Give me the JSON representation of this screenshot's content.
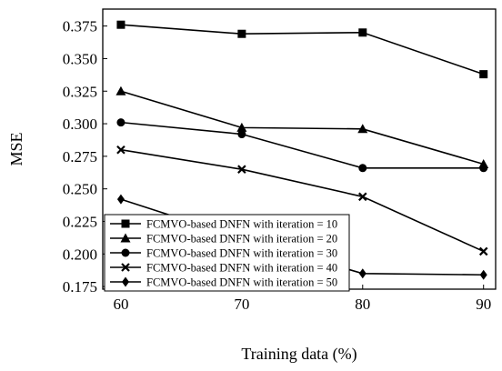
{
  "chart_data": {
    "type": "line",
    "xlabel": "Training data (%)",
    "ylabel": "MSE",
    "x": [
      60,
      70,
      80,
      90
    ],
    "x_ticks": [
      "60",
      "70",
      "80",
      "90"
    ],
    "xlim": [
      58.5,
      91
    ],
    "ylim": [
      0.173,
      0.388
    ],
    "y_ticks": [
      "0.175",
      "0.200",
      "0.225",
      "0.250",
      "0.275",
      "0.300",
      "0.325",
      "0.350",
      "0.375"
    ],
    "grid": false,
    "legend_position": "bottom-left",
    "series": [
      {
        "name": "FCMVO-based DNFN with iteration = 10",
        "marker": "square",
        "values": [
          0.376,
          0.369,
          0.37,
          0.338
        ]
      },
      {
        "name": "FCMVO-based DNFN with iteration = 20",
        "marker": "triangle",
        "values": [
          0.325,
          0.297,
          0.296,
          0.269
        ]
      },
      {
        "name": "FCMVO-based DNFN with iteration = 30",
        "marker": "circle",
        "values": [
          0.301,
          0.292,
          0.266,
          0.266
        ]
      },
      {
        "name": "FCMVO-based DNFN with iteration = 40",
        "marker": "x",
        "values": [
          0.28,
          0.265,
          0.244,
          0.202
        ]
      },
      {
        "name": "FCMVO-based DNFN with iteration = 50",
        "marker": "diamond",
        "values": [
          0.242,
          0.212,
          0.185,
          0.184
        ]
      }
    ],
    "colors": {
      "line": "#000000",
      "background": "#ffffff"
    }
  }
}
